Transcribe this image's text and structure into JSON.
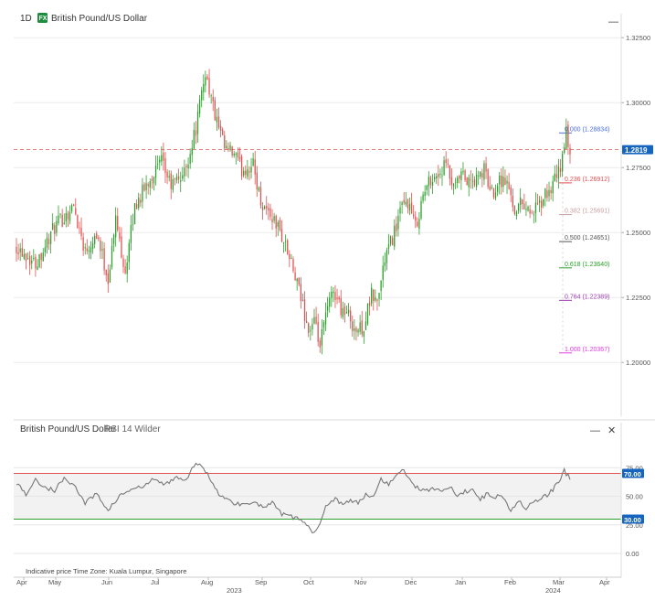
{
  "header": {
    "timeframe": "1D",
    "symbol_badge": "FX",
    "symbol_name": "British Pound/US Dollar",
    "minimize": "—"
  },
  "indicator_header": {
    "name": "British Pound/US Dollar",
    "indicator": "RSI 14 Wilder",
    "minimize": "—",
    "close": "✕"
  },
  "footer": {
    "price_note": "Indicative price",
    "timezone": "Time Zone: Kuala Lumpur, Singapore"
  },
  "colors": {
    "up": "#2ca02c",
    "down": "#e05252",
    "current_price": "#e05252",
    "current_price_tag": "#1565c0",
    "rsi_line": "#777777",
    "rsi_upper": "#e05252",
    "rsi_lower": "#2ca02c",
    "rsi_tag": "#1565c0"
  },
  "chart_data": [
    {
      "type": "candlestick",
      "ylim": [
        1.18,
        1.33
      ],
      "yticks": [
        "1.32500",
        "1.30000",
        "1.27500",
        "1.25000",
        "1.22500",
        "1.20000"
      ],
      "ytick_values": [
        1.325,
        1.3,
        1.275,
        1.25,
        1.225,
        1.2
      ],
      "current_price": 1.2819,
      "current_price_label": "1.2819",
      "x_months": [
        "Apr",
        "May",
        "Jun",
        "Jul",
        "Aug",
        "Sep",
        "Oct",
        "Nov",
        "Dec",
        "Jan",
        "Feb",
        "Mar",
        "Apr"
      ],
      "x_years": [
        "2023",
        "2024"
      ],
      "price_path": [
        [
          0,
          1.245
        ],
        [
          10,
          1.238
        ],
        [
          20,
          1.252
        ],
        [
          30,
          1.26
        ],
        [
          36,
          1.243
        ],
        [
          42,
          1.25
        ],
        [
          48,
          1.232
        ],
        [
          52,
          1.255
        ],
        [
          57,
          1.235
        ],
        [
          62,
          1.26
        ],
        [
          70,
          1.271
        ],
        [
          76,
          1.277
        ],
        [
          81,
          1.268
        ],
        [
          88,
          1.273
        ],
        [
          94,
          1.29
        ],
        [
          99,
          1.312
        ],
        [
          104,
          1.295
        ],
        [
          109,
          1.282
        ],
        [
          114,
          1.28
        ],
        [
          118,
          1.274
        ],
        [
          124,
          1.276
        ],
        [
          128,
          1.262
        ],
        [
          133,
          1.257
        ],
        [
          137,
          1.252
        ],
        [
          141,
          1.245
        ],
        [
          145,
          1.235
        ],
        [
          150,
          1.222
        ],
        [
          153,
          1.212
        ],
        [
          156,
          1.215
        ],
        [
          159,
          1.206
        ],
        [
          162,
          1.218
        ],
        [
          166,
          1.228
        ],
        [
          170,
          1.221
        ],
        [
          174,
          1.218
        ],
        [
          178,
          1.212
        ],
        [
          182,
          1.214
        ],
        [
          186,
          1.226
        ],
        [
          189,
          1.223
        ],
        [
          193,
          1.24
        ],
        [
          197,
          1.248
        ],
        [
          201,
          1.258
        ],
        [
          205,
          1.262
        ],
        [
          209,
          1.252
        ],
        [
          213,
          1.264
        ],
        [
          217,
          1.271
        ],
        [
          221,
          1.272
        ],
        [
          225,
          1.276
        ],
        [
          229,
          1.266
        ],
        [
          233,
          1.272
        ],
        [
          237,
          1.269
        ],
        [
          241,
          1.27
        ],
        [
          245,
          1.274
        ],
        [
          249,
          1.265
        ],
        [
          253,
          1.271
        ],
        [
          257,
          1.269
        ],
        [
          261,
          1.259
        ],
        [
          265,
          1.262
        ],
        [
          269,
          1.258
        ],
        [
          273,
          1.259
        ],
        [
          277,
          1.264
        ],
        [
          281,
          1.268
        ],
        [
          285,
          1.275
        ],
        [
          288,
          1.288
        ],
        [
          290,
          1.2819
        ]
      ],
      "fibonacci": [
        {
          "level": "0.000",
          "price": 1.28834,
          "label": "0.000 (1.28834)",
          "color": "#4a6ee0"
        },
        {
          "level": "0.236",
          "price": 1.26912,
          "label": "0.236 (1.26912)",
          "color": "#e05252"
        },
        {
          "level": "0.382",
          "price": 1.25691,
          "label": "0.382 (1.25691)",
          "color": "#c9a0a0"
        },
        {
          "level": "0.500",
          "price": 1.24651,
          "label": "0.500 (1.24651)",
          "color": "#555555"
        },
        {
          "level": "0.618",
          "price": 1.2364,
          "label": "0.618 (1.23640)",
          "color": "#2ca02c"
        },
        {
          "level": "0.764",
          "price": 1.22389,
          "label": "0.764 (1.22389)",
          "color": "#9c3fb0"
        },
        {
          "level": "1.000",
          "price": 1.20367,
          "label": "1.000 (1.20367)",
          "color": "#e040e0"
        }
      ]
    },
    {
      "type": "line",
      "title": "RSI 14 Wilder",
      "ylim": [
        0,
        100
      ],
      "yticks": [
        "75.00",
        "50.00",
        "25.00",
        "0.00"
      ],
      "ytick_values": [
        75,
        50,
        25,
        0
      ],
      "upper_band": 70,
      "upper_band_label": "70.00",
      "lower_band": 30,
      "lower_band_label": "30.00",
      "rsi_path": [
        [
          0,
          62
        ],
        [
          5,
          52
        ],
        [
          10,
          64
        ],
        [
          15,
          58
        ],
        [
          20,
          55
        ],
        [
          25,
          66
        ],
        [
          30,
          60
        ],
        [
          36,
          44
        ],
        [
          42,
          52
        ],
        [
          48,
          38
        ],
        [
          54,
          50
        ],
        [
          60,
          56
        ],
        [
          66,
          58
        ],
        [
          72,
          65
        ],
        [
          78,
          60
        ],
        [
          84,
          68
        ],
        [
          88,
          62
        ],
        [
          92,
          74
        ],
        [
          96,
          80
        ],
        [
          100,
          70
        ],
        [
          104,
          56
        ],
        [
          109,
          48
        ],
        [
          114,
          44
        ],
        [
          119,
          43
        ],
        [
          124,
          46
        ],
        [
          129,
          40
        ],
        [
          134,
          44
        ],
        [
          139,
          34
        ],
        [
          144,
          32
        ],
        [
          149,
          30
        ],
        [
          153,
          22
        ],
        [
          156,
          18
        ],
        [
          159,
          28
        ],
        [
          163,
          44
        ],
        [
          167,
          48
        ],
        [
          171,
          43
        ],
        [
          175,
          46
        ],
        [
          179,
          44
        ],
        [
          183,
          52
        ],
        [
          187,
          50
        ],
        [
          191,
          66
        ],
        [
          195,
          60
        ],
        [
          199,
          70
        ],
        [
          203,
          72
        ],
        [
          207,
          62
        ],
        [
          211,
          56
        ],
        [
          215,
          56
        ],
        [
          219,
          57
        ],
        [
          223,
          55
        ],
        [
          227,
          58
        ],
        [
          231,
          50
        ],
        [
          235,
          54
        ],
        [
          239,
          56
        ],
        [
          243,
          48
        ],
        [
          247,
          52
        ],
        [
          251,
          50
        ],
        [
          255,
          50
        ],
        [
          259,
          38
        ],
        [
          263,
          46
        ],
        [
          267,
          40
        ],
        [
          271,
          44
        ],
        [
          275,
          48
        ],
        [
          279,
          52
        ],
        [
          283,
          60
        ],
        [
          287,
          72
        ],
        [
          290,
          66
        ]
      ]
    }
  ]
}
